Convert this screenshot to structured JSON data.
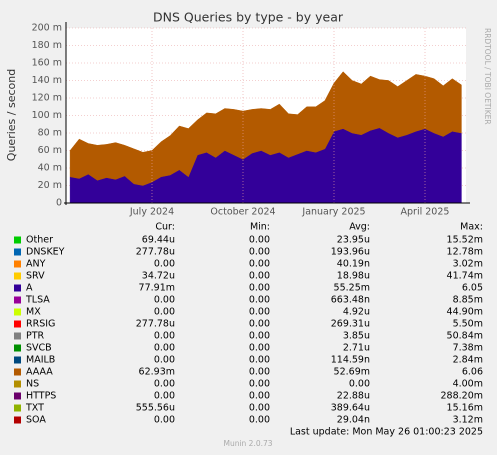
{
  "chart_data": {
    "type": "area",
    "title": "DNS Queries by type - by year",
    "y_label": "Queries / second",
    "side_note": "RRDTOOL / TOBI OETIKER",
    "categories": [
      null,
      null,
      null,
      null,
      null,
      null,
      null,
      null,
      null,
      "July 2024",
      null,
      null,
      null,
      null,
      null,
      null,
      null,
      null,
      null,
      "October 2024",
      null,
      null,
      null,
      null,
      null,
      null,
      null,
      null,
      null,
      "January 2025",
      null,
      null,
      null,
      null,
      null,
      null,
      null,
      null,
      null,
      "April 2025",
      null,
      null,
      null,
      null
    ],
    "ylim": [
      0,
      0.2
    ],
    "yticks": [
      0,
      {
        "value": 0.02,
        "label": "20 m"
      },
      {
        "value": 0.04,
        "label": "40 m"
      },
      {
        "value": 0.06,
        "label": "60 m"
      },
      {
        "value": 0.08,
        "label": "80 m"
      },
      {
        "value": 0.1,
        "label": "100 m"
      },
      {
        "value": 0.12,
        "label": "120 m"
      },
      {
        "value": 0.14,
        "label": "140 m"
      },
      {
        "value": 0.16,
        "label": "160 m"
      },
      {
        "value": 0.18,
        "label": "180 m"
      },
      {
        "value": 0.2,
        "label": "200 m"
      }
    ],
    "grid": true,
    "stat_headers": [
      "Cur:",
      "Min:",
      "Avg:",
      "Max:"
    ],
    "series": [
      {
        "name": "Other",
        "color": "#00cc00",
        "stats": [
          "69.44u",
          "0.00",
          "23.95u",
          "15.52m"
        ]
      },
      {
        "name": "DNSKEY",
        "color": "#0066b3",
        "stats": [
          "277.78u",
          "0.00",
          "193.96u",
          "12.78m"
        ]
      },
      {
        "name": "ANY",
        "color": "#ff8000",
        "stats": [
          "0.00",
          "0.00",
          "40.19n",
          "3.02m"
        ]
      },
      {
        "name": "SRV",
        "color": "#ffcc00",
        "stats": [
          "34.72u",
          "0.00",
          "18.98u",
          "41.74m"
        ]
      },
      {
        "name": "A",
        "color": "#330099",
        "stats": [
          "77.91m",
          "0.00",
          "55.25m",
          "6.05"
        ],
        "values": [
          0.03,
          0.028,
          0.033,
          0.026,
          0.029,
          0.027,
          0.031,
          0.022,
          0.02,
          0.024,
          0.03,
          0.032,
          0.038,
          0.03,
          0.055,
          0.058,
          0.052,
          0.06,
          0.055,
          0.05,
          0.057,
          0.06,
          0.055,
          0.058,
          0.052,
          0.056,
          0.06,
          0.058,
          0.062,
          0.082,
          0.085,
          0.08,
          0.078,
          0.083,
          0.086,
          0.08,
          0.075,
          0.078,
          0.082,
          0.085,
          0.08,
          0.076,
          0.082,
          0.08
        ]
      },
      {
        "name": "TLSA",
        "color": "#990099",
        "stats": [
          "0.00",
          "0.00",
          "663.48n",
          "8.85m"
        ]
      },
      {
        "name": "MX",
        "color": "#ccff00",
        "stats": [
          "0.00",
          "0.00",
          "4.92u",
          "44.90m"
        ]
      },
      {
        "name": "RRSIG",
        "color": "#ff0000",
        "stats": [
          "277.78u",
          "0.00",
          "269.31u",
          "5.50m"
        ]
      },
      {
        "name": "PTR",
        "color": "#808080",
        "stats": [
          "0.00",
          "0.00",
          "3.85u",
          "50.84m"
        ]
      },
      {
        "name": "SVCB",
        "color": "#008f00",
        "stats": [
          "0.00",
          "0.00",
          "2.71u",
          "7.38m"
        ]
      },
      {
        "name": "MAILB",
        "color": "#00487d",
        "stats": [
          "0.00",
          "0.00",
          "114.59n",
          "2.84m"
        ]
      },
      {
        "name": "AAAA",
        "color": "#b35a00",
        "stats": [
          "62.93m",
          "0.00",
          "52.69m",
          "6.06"
        ],
        "values": [
          0.03,
          0.045,
          0.035,
          0.04,
          0.038,
          0.042,
          0.035,
          0.04,
          0.038,
          0.036,
          0.04,
          0.045,
          0.05,
          0.055,
          0.04,
          0.045,
          0.05,
          0.048,
          0.052,
          0.055,
          0.05,
          0.048,
          0.052,
          0.055,
          0.05,
          0.045,
          0.05,
          0.052,
          0.055,
          0.055,
          0.065,
          0.06,
          0.058,
          0.062,
          0.055,
          0.06,
          0.058,
          0.062,
          0.065,
          0.06,
          0.062,
          0.058,
          0.06,
          0.055
        ]
      },
      {
        "name": "NS",
        "color": "#b38f00",
        "stats": [
          "0.00",
          "0.00",
          "0.00",
          "4.00m"
        ]
      },
      {
        "name": "HTTPS",
        "color": "#6b006b",
        "stats": [
          "0.00",
          "0.00",
          "22.88u",
          "288.20m"
        ]
      },
      {
        "name": "TXT",
        "color": "#8fb300",
        "stats": [
          "555.56u",
          "0.00",
          "389.64u",
          "15.16m"
        ]
      },
      {
        "name": "SOA",
        "color": "#b30000",
        "stats": [
          "0.00",
          "0.00",
          "29.04n",
          "3.12m"
        ]
      }
    ],
    "last_update": "Last update: Mon May 26 01:00:23 2025",
    "footer": "Munin 2.0.73"
  }
}
